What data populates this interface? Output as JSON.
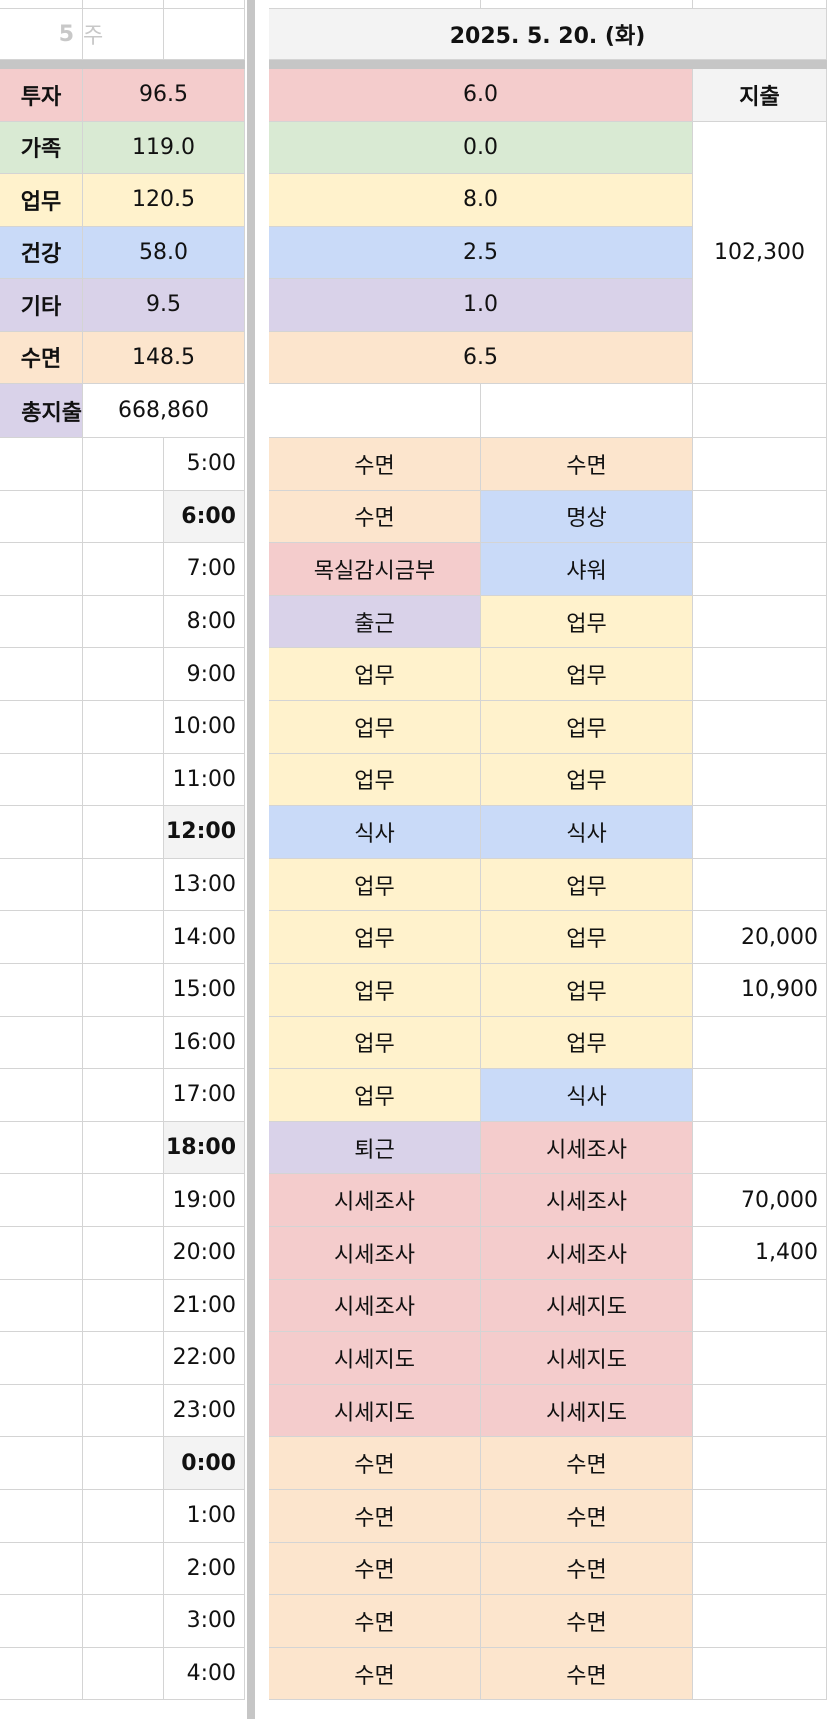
{
  "colors": {
    "투자": "#f4cccc",
    "가족": "#d9ead3",
    "업무": "#fff2cc",
    "건강": "#c9daf8",
    "기타": "#d9d2e9",
    "수면": "#fce5cd",
    "header_gray": "#f3f3f3"
  },
  "header": {
    "week_number": "5",
    "week_label": "주",
    "date": "2025. 5. 20. (화)"
  },
  "summary": [
    {
      "category": "투자",
      "week_total": "96.5",
      "day_total": "6.0"
    },
    {
      "category": "가족",
      "week_total": "119.0",
      "day_total": "0.0"
    },
    {
      "category": "업무",
      "week_total": "120.5",
      "day_total": "8.0"
    },
    {
      "category": "건강",
      "week_total": "58.0",
      "day_total": "2.5"
    },
    {
      "category": "기타",
      "week_total": "9.5",
      "day_total": "1.0"
    },
    {
      "category": "수면",
      "week_total": "148.5",
      "day_total": "6.5"
    }
  ],
  "expense": {
    "header": "지출",
    "day_total": "102,300",
    "total_label": "총지출",
    "total_value": "668,860"
  },
  "schedule": [
    {
      "time": "5:00",
      "bold": false,
      "a": "수면",
      "a_cat": "수면",
      "b": "수면",
      "b_cat": "수면",
      "expense": ""
    },
    {
      "time": "6:00",
      "bold": true,
      "a": "수면",
      "a_cat": "수면",
      "b": "명상",
      "b_cat": "건강",
      "expense": ""
    },
    {
      "time": "7:00",
      "bold": false,
      "a": "목실감시금부",
      "a_cat": "투자",
      "b": "샤워",
      "b_cat": "건강",
      "expense": ""
    },
    {
      "time": "8:00",
      "bold": false,
      "a": "출근",
      "a_cat": "기타",
      "b": "업무",
      "b_cat": "업무",
      "expense": ""
    },
    {
      "time": "9:00",
      "bold": false,
      "a": "업무",
      "a_cat": "업무",
      "b": "업무",
      "b_cat": "업무",
      "expense": ""
    },
    {
      "time": "10:00",
      "bold": false,
      "a": "업무",
      "a_cat": "업무",
      "b": "업무",
      "b_cat": "업무",
      "expense": ""
    },
    {
      "time": "11:00",
      "bold": false,
      "a": "업무",
      "a_cat": "업무",
      "b": "업무",
      "b_cat": "업무",
      "expense": ""
    },
    {
      "time": "12:00",
      "bold": true,
      "a": "식사",
      "a_cat": "건강",
      "b": "식사",
      "b_cat": "건강",
      "expense": ""
    },
    {
      "time": "13:00",
      "bold": false,
      "a": "업무",
      "a_cat": "업무",
      "b": "업무",
      "b_cat": "업무",
      "expense": ""
    },
    {
      "time": "14:00",
      "bold": false,
      "a": "업무",
      "a_cat": "업무",
      "b": "업무",
      "b_cat": "업무",
      "expense": "20,000"
    },
    {
      "time": "15:00",
      "bold": false,
      "a": "업무",
      "a_cat": "업무",
      "b": "업무",
      "b_cat": "업무",
      "expense": "10,900"
    },
    {
      "time": "16:00",
      "bold": false,
      "a": "업무",
      "a_cat": "업무",
      "b": "업무",
      "b_cat": "업무",
      "expense": ""
    },
    {
      "time": "17:00",
      "bold": false,
      "a": "업무",
      "a_cat": "업무",
      "b": "식사",
      "b_cat": "건강",
      "expense": ""
    },
    {
      "time": "18:00",
      "bold": true,
      "a": "퇴근",
      "a_cat": "기타",
      "b": "시세조사",
      "b_cat": "투자",
      "expense": ""
    },
    {
      "time": "19:00",
      "bold": false,
      "a": "시세조사",
      "a_cat": "투자",
      "b": "시세조사",
      "b_cat": "투자",
      "expense": "70,000"
    },
    {
      "time": "20:00",
      "bold": false,
      "a": "시세조사",
      "a_cat": "투자",
      "b": "시세조사",
      "b_cat": "투자",
      "expense": "1,400"
    },
    {
      "time": "21:00",
      "bold": false,
      "a": "시세조사",
      "a_cat": "투자",
      "b": "시세지도",
      "b_cat": "투자",
      "expense": ""
    },
    {
      "time": "22:00",
      "bold": false,
      "a": "시세지도",
      "a_cat": "투자",
      "b": "시세지도",
      "b_cat": "투자",
      "expense": ""
    },
    {
      "time": "23:00",
      "bold": false,
      "a": "시세지도",
      "a_cat": "투자",
      "b": "시세지도",
      "b_cat": "투자",
      "expense": ""
    },
    {
      "time": "0:00",
      "bold": true,
      "a": "수면",
      "a_cat": "수면",
      "b": "수면",
      "b_cat": "수면",
      "expense": ""
    },
    {
      "time": "1:00",
      "bold": false,
      "a": "수면",
      "a_cat": "수면",
      "b": "수면",
      "b_cat": "수면",
      "expense": ""
    },
    {
      "time": "2:00",
      "bold": false,
      "a": "수면",
      "a_cat": "수면",
      "b": "수면",
      "b_cat": "수면",
      "expense": ""
    },
    {
      "time": "3:00",
      "bold": false,
      "a": "수면",
      "a_cat": "수면",
      "b": "수면",
      "b_cat": "수면",
      "expense": ""
    },
    {
      "time": "4:00",
      "bold": false,
      "a": "수면",
      "a_cat": "수면",
      "b": "수면",
      "b_cat": "수면",
      "expense": ""
    }
  ]
}
